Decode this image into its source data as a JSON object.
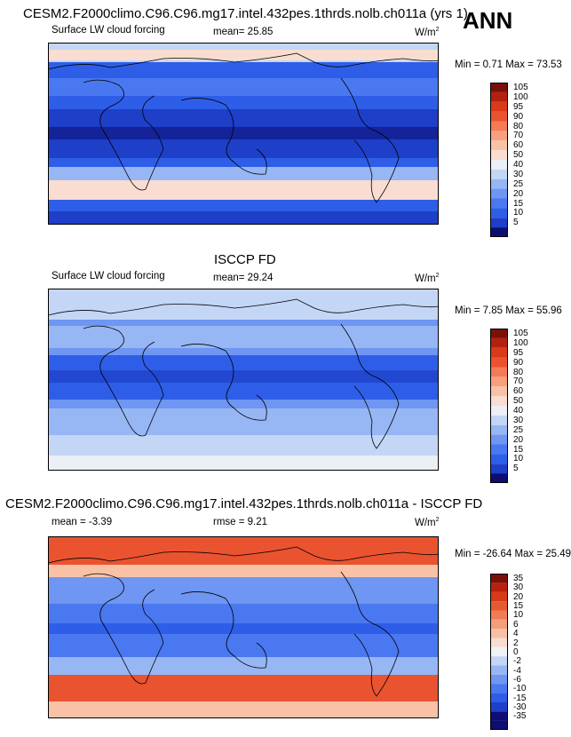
{
  "season": "ANN",
  "colors": {
    "abs_levels": [
      "#0d0d73",
      "#1e3fc8",
      "#2e5ee8",
      "#4a78f0",
      "#6e96f2",
      "#97b6f4",
      "#c4d6f6",
      "#ecf0f6",
      "#f9ddd0",
      "#f9c2a6",
      "#f8a07c",
      "#f47b55",
      "#ea5330",
      "#d93a18",
      "#b32010",
      "#7a1008"
    ],
    "diff_levels": [
      "#0d0d73",
      "#1e3fc8",
      "#2e5ee8",
      "#4a78f0",
      "#6e96f2",
      "#97b6f4",
      "#c4d6f6",
      "#eef1f6",
      "#f9dcd0",
      "#f8c0a4",
      "#f59e7c",
      "#f07c56",
      "#e65a30",
      "#d63a16",
      "#b82010",
      "#7a1008"
    ]
  },
  "chart_data": [
    {
      "type": "heatmap",
      "title": "CESM2.F2000climo.C96.C96.mg17.intel.432pes.1thrds.nolb.ch011a (yrs 1)",
      "variable": "Surface LW cloud forcing",
      "mean_label": "mean=  25.85",
      "mean": 25.85,
      "units": "W/m",
      "units_sup": "2",
      "minmax_label": "Min =  0.71 Max =  73.53",
      "min": 0.71,
      "max": 73.53,
      "colorbar_levels": [
        "105",
        "100",
        "95",
        "90",
        "80",
        "70",
        "60",
        "50",
        "40",
        "30",
        "25",
        "20",
        "15",
        "10",
        "5"
      ]
    },
    {
      "type": "heatmap",
      "title": "ISCCP FD",
      "variable": "Surface LW cloud forcing",
      "mean_label": "mean=  29.24",
      "mean": 29.24,
      "units": "W/m",
      "units_sup": "2",
      "minmax_label": "Min =  7.85 Max =  55.96",
      "min": 7.85,
      "max": 55.96,
      "colorbar_levels": [
        "105",
        "100",
        "95",
        "90",
        "80",
        "70",
        "60",
        "50",
        "40",
        "30",
        "25",
        "20",
        "15",
        "10",
        "5"
      ]
    },
    {
      "type": "heatmap",
      "title": "CESM2.F2000climo.C96.C96.mg17.intel.432pes.1thrds.nolb.ch011a - ISCCP FD",
      "mean_label": "mean =  -3.39",
      "mean": -3.39,
      "rmse_label": "rmse =   9.21",
      "rmse": 9.21,
      "units": "W/m",
      "units_sup": "2",
      "minmax_label": "Min = -26.64 Max =  25.49",
      "min": -26.64,
      "max": 25.49,
      "colorbar_levels": [
        "35",
        "30",
        "20",
        "15",
        "10",
        "6",
        "4",
        "2",
        "0",
        "-2",
        "-4",
        "-6",
        "-10",
        "-15",
        "-30",
        "-35"
      ]
    }
  ]
}
